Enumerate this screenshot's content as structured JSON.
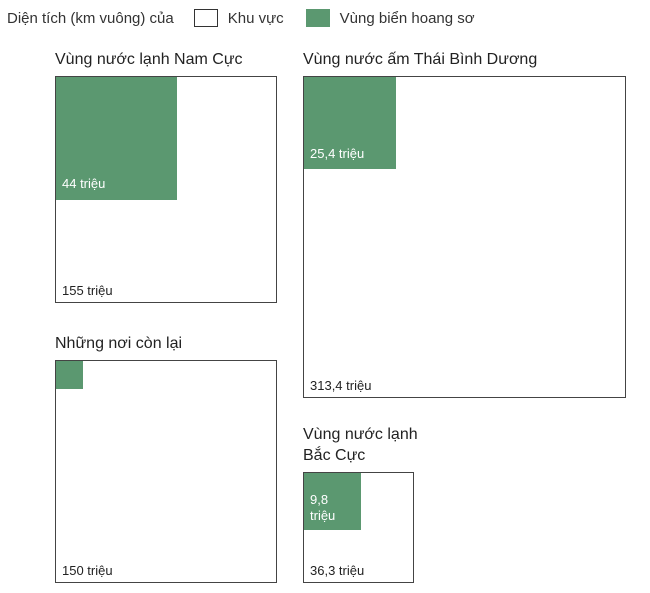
{
  "legend": {
    "title": "Diện tích (km vuông) của",
    "items": [
      {
        "label": "Khu vực",
        "swatch": "outline"
      },
      {
        "label": "Vùng biển hoang sơ",
        "swatch": "#5b9870"
      }
    ]
  },
  "colors": {
    "pristine": "#5b9870",
    "outline": "#444444"
  },
  "chart_data": {
    "type": "nested-square",
    "units": "km vuông",
    "regions": [
      {
        "name": "Vùng nước lạnh Nam Cực",
        "area_million_km2": 155,
        "area_label": "155 triệu",
        "pristine_million_km2": 44,
        "pristine_label": "44 triệu"
      },
      {
        "name": "Vùng nước ấm Thái Bình Dương",
        "area_million_km2": 313.4,
        "area_label": "313,4 triệu",
        "pristine_million_km2": 25.4,
        "pristine_label": "25,4 triệu"
      },
      {
        "name": "Những nơi còn lại",
        "area_million_km2": 150,
        "area_label": "150 triệu",
        "pristine_million_km2": 5,
        "pristine_label": ""
      },
      {
        "name": "Vùng nước lạnh Bắc Cực",
        "name_lines": [
          "Vùng nước lạnh",
          "Bắc Cực"
        ],
        "area_million_km2": 36.3,
        "area_label": "36,3 triệu",
        "pristine_million_km2": 9.8,
        "pristine_label": "9,8 triệu",
        "pristine_label_lines": [
          "9,8",
          "triệu"
        ]
      }
    ]
  }
}
